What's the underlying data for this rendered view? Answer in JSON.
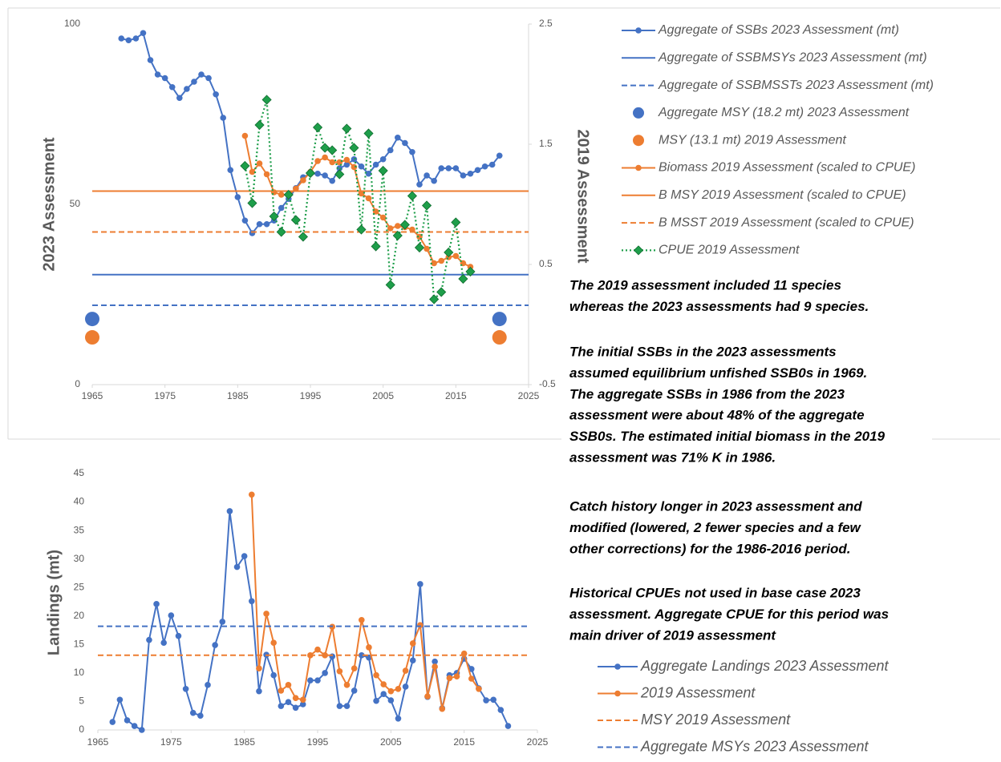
{
  "chart_data": [
    {
      "type": "line",
      "xlim": [
        1965,
        2025
      ],
      "xticks": [
        1965,
        1975,
        1985,
        1995,
        2005,
        2015,
        2025
      ],
      "ylim": [
        0,
        100
      ],
      "yticks": [
        0,
        50,
        100
      ],
      "y2lim": [
        -0.5,
        2.5
      ],
      "y2ticks": [
        -0.5,
        0.5,
        1.5,
        2.5
      ],
      "ylabel": "2023 Assessment",
      "y2label": "2019 Assessment",
      "series": [
        {
          "name": "Aggregate of SSBs 2023 Assessment (mt)",
          "color": "#4472c4",
          "dash": "solid",
          "marker": "circle",
          "x": [
            1969,
            1970,
            1971,
            1972,
            1973,
            1974,
            1975,
            1976,
            1977,
            1978,
            1979,
            1980,
            1981,
            1982,
            1983,
            1984,
            1985,
            1986,
            1987,
            1988,
            1989,
            1990,
            1991,
            1992,
            1993,
            1994,
            1995,
            1996,
            1997,
            1998,
            1999,
            2000,
            2001,
            2002,
            2003,
            2004,
            2005,
            2006,
            2007,
            2008,
            2009,
            2010,
            2011,
            2012,
            2013,
            2014,
            2015,
            2016,
            2017,
            2018,
            2019,
            2020,
            2021
          ],
          "values": [
            96,
            95.5,
            96,
            97.5,
            90,
            86,
            85,
            82.5,
            79.5,
            82,
            84,
            86,
            85,
            80.5,
            74,
            59.5,
            52,
            45.5,
            42,
            44.5,
            44.5,
            45.5,
            49,
            51.5,
            54.5,
            57.5,
            58.5,
            58.5,
            58,
            56.5,
            60,
            61,
            62.5,
            60.5,
            58.5,
            61,
            62.5,
            65,
            68.5,
            67,
            64.5,
            55.5,
            58,
            56.5,
            60,
            60,
            60,
            58,
            58.5,
            59.5,
            60.5,
            61,
            63.5
          ]
        },
        {
          "name": "Aggregate of SSBMSYs 2023 Assessment (mt)",
          "color": "#4472c4",
          "dash": "solid",
          "marker": "none",
          "x": [
            1965,
            2025
          ],
          "values": [
            30.5,
            30.5
          ]
        },
        {
          "name": "Aggregate of SSBMSSTs 2023 Assessment (mt)",
          "color": "#4472c4",
          "dash": "dashed",
          "marker": "none",
          "x": [
            1965,
            2025
          ],
          "values": [
            22,
            22
          ]
        },
        {
          "name": "Aggregate MSY (18.2 mt) 2023 Assessment",
          "color": "#4472c4",
          "dash": "none",
          "marker": "dot",
          "x": [
            1965,
            2021
          ],
          "values": [
            18.2,
            18.2
          ]
        },
        {
          "name": "MSY (13.1 mt) 2019 Assessment",
          "color": "#ed7d31",
          "dash": "none",
          "marker": "dot",
          "x": [
            1965,
            2021
          ],
          "values": [
            13.1,
            13.1
          ]
        },
        {
          "name": "Biomass 2019 Assessment (scaled to CPUE)",
          "color": "#ed7d31",
          "dash": "solid",
          "marker": "circle",
          "axis": "y2",
          "x": [
            1986,
            1987,
            1988,
            1989,
            1990,
            1991,
            1992,
            1993,
            1994,
            1995,
            1996,
            1997,
            1998,
            1999,
            2000,
            2001,
            2002,
            2003,
            2004,
            2005,
            2006,
            2007,
            2008,
            2009,
            2010,
            2011,
            2012,
            2013,
            2014,
            2015,
            2016,
            2017
          ],
          "values": [
            1.57,
            1.27,
            1.34,
            1.25,
            1.1,
            1.08,
            1.08,
            1.13,
            1.2,
            1.27,
            1.36,
            1.39,
            1.35,
            1.35,
            1.37,
            1.31,
            1.09,
            1.05,
            0.94,
            0.89,
            0.8,
            0.82,
            0.81,
            0.79,
            0.73,
            0.63,
            0.51,
            0.53,
            0.56,
            0.57,
            0.51,
            0.48
          ]
        },
        {
          "name": "B MSY 2019 Assessment (scaled to CPUE)",
          "color": "#ed7d31",
          "dash": "solid",
          "marker": "none",
          "axis": "y2",
          "x": [
            1965,
            2025
          ],
          "values": [
            1.11,
            1.11
          ]
        },
        {
          "name": "B MSST 2019 Assessment (scaled to CPUE)",
          "color": "#ed7d31",
          "dash": "dashed",
          "marker": "none",
          "axis": "y2",
          "x": [
            1965,
            2025
          ],
          "values": [
            0.77,
            0.77
          ]
        },
        {
          "name": "CPUE 2019 Assessment",
          "color": "#1e9e4a",
          "dash": "dotted",
          "marker": "diamond",
          "axis": "y2",
          "x": [
            1986,
            1987,
            1988,
            1989,
            1990,
            1991,
            1992,
            1993,
            1994,
            1995,
            1996,
            1997,
            1998,
            1999,
            2000,
            2001,
            2002,
            2003,
            2004,
            2005,
            2006,
            2007,
            2008,
            2009,
            2010,
            2011,
            2012,
            2013,
            2014,
            2015,
            2016,
            2017
          ],
          "values": [
            1.32,
            1.01,
            1.66,
            1.87,
            0.9,
            0.77,
            1.08,
            0.87,
            0.73,
            1.26,
            1.64,
            1.47,
            1.45,
            1.25,
            1.63,
            1.47,
            0.79,
            1.59,
            0.65,
            1.28,
            0.33,
            0.74,
            0.83,
            1.07,
            0.64,
            0.99,
            0.21,
            0.27,
            0.6,
            0.85,
            0.38,
            0.44
          ]
        }
      ]
    },
    {
      "type": "line",
      "xlim": [
        1965,
        2025
      ],
      "xticks": [
        1965,
        1975,
        1985,
        1995,
        2005,
        2015,
        2025
      ],
      "ylim": [
        0,
        45
      ],
      "yticks": [
        0,
        5,
        10,
        15,
        20,
        25,
        30,
        35,
        40,
        45
      ],
      "ylabel": "Landings (mt)",
      "series": [
        {
          "name": "Aggregate Landings 2023 Assessment",
          "color": "#4472c4",
          "dash": "solid",
          "marker": "circle",
          "x": [
            1967,
            1968,
            1969,
            1970,
            1971,
            1972,
            1973,
            1974,
            1975,
            1976,
            1977,
            1978,
            1979,
            1980,
            1981,
            1982,
            1983,
            1984,
            1985,
            1986,
            1987,
            1988,
            1989,
            1990,
            1991,
            1992,
            1993,
            1994,
            1995,
            1996,
            1997,
            1998,
            1999,
            2000,
            2001,
            2002,
            2003,
            2004,
            2005,
            2006,
            2007,
            2008,
            2009,
            2010,
            2011,
            2012,
            2013,
            2014,
            2015,
            2016,
            2017,
            2018,
            2019,
            2020,
            2021
          ],
          "values": [
            1.4,
            5.3,
            1.7,
            0.7,
            0,
            15.8,
            22.1,
            15.3,
            20.1,
            16.5,
            7.2,
            3.0,
            2.5,
            7.9,
            14.9,
            19.0,
            38.4,
            28.6,
            30.5,
            22.6,
            6.8,
            13.2,
            9.6,
            4.2,
            4.9,
            3.9,
            4.5,
            8.7,
            8.7,
            10.0,
            12.9,
            4.2,
            4.2,
            6.9,
            13.1,
            12.7,
            5.1,
            6.3,
            5.2,
            2.0,
            7.6,
            12.2,
            25.6,
            5.8,
            12.0,
            3.8,
            9.6,
            10.0,
            12.5,
            10.7,
            7.3,
            5.2,
            5.3,
            3.5,
            0.7
          ]
        },
        {
          "name": "2019 Assessment",
          "color": "#ed7d31",
          "dash": "solid",
          "marker": "circle",
          "x": [
            1986,
            1987,
            1988,
            1989,
            1990,
            1991,
            1992,
            1993,
            1994,
            1995,
            1996,
            1997,
            1998,
            1999,
            2000,
            2001,
            2002,
            2003,
            2004,
            2005,
            2006,
            2007,
            2008,
            2009,
            2010,
            2011,
            2012,
            2013,
            2014,
            2015,
            2016,
            2017
          ],
          "values": [
            41.3,
            10.8,
            20.4,
            15.3,
            6.9,
            7.9,
            5.6,
            5.3,
            13.1,
            14.1,
            13.1,
            18.1,
            10.3,
            7.9,
            10.8,
            19.3,
            14.5,
            9.6,
            8.0,
            6.8,
            7.2,
            10.4,
            15.2,
            18.4,
            5.9,
            11.1,
            3.7,
            9.1,
            9.4,
            13.4,
            9.0,
            7.2
          ]
        },
        {
          "name": "MSY 2019 Assessment",
          "color": "#ed7d31",
          "dash": "dashed",
          "marker": "none",
          "x": [
            1965,
            2024
          ],
          "values": [
            13.1,
            13.1
          ]
        },
        {
          "name": "Aggregate MSYs 2023 Assessment",
          "color": "#4472c4",
          "dash": "dashed",
          "marker": "none",
          "x": [
            1965,
            2024
          ],
          "values": [
            18.2,
            18.2
          ]
        }
      ]
    }
  ],
  "notes": [
    [
      "The 2019 assessment included 11 species",
      "whereas the 2023 assessments had 9 species."
    ],
    [
      "The initial SSBs in the 2023 assessments",
      "assumed equilibrium unfished SSB0s in 1969.",
      "The aggregate SSBs in 1986 from the 2023",
      "assessment were about 48% of the aggregate",
      "SSB0s. The estimated initial biomass in the 2019",
      "assessment was 71% K in 1986."
    ],
    [
      "Catch history longer in 2023 assessment and",
      "modified (lowered, 2 fewer species and a few",
      "other corrections) for the 1986-2016 period."
    ],
    [
      "Historical CPUEs not used in base case 2023",
      "assessment. Aggregate CPUE for this period was",
      "main driver of 2019 assessment"
    ]
  ]
}
